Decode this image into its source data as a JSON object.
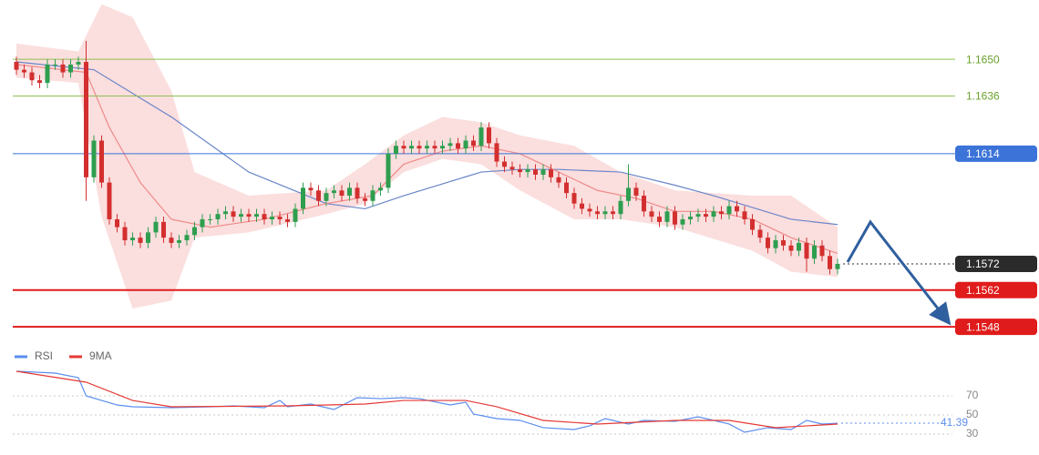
{
  "chart_data": [
    {
      "type": "candlestick",
      "open": [
        1.1649,
        1.1646,
        1.1645,
        1.1642,
        1.1641,
        1.1648,
        1.1648,
        1.1645,
        1.1648,
        1.1649,
        1.1605,
        1.1619,
        1.1603,
        1.1589,
        1.1586,
        1.1581,
        1.1582,
        1.158,
        1.1584,
        1.1588,
        1.1582,
        1.158,
        1.1581,
        1.1583,
        1.1586,
        1.1589,
        1.1589,
        1.1591,
        1.1592,
        1.159,
        1.1591,
        1.159,
        1.1591,
        1.1589,
        1.159,
        1.1589,
        1.1588,
        1.1593,
        1.1601,
        1.16,
        1.1596,
        1.1599,
        1.16,
        1.1598,
        1.1601,
        1.1597,
        1.1596,
        1.16,
        1.1601,
        1.1614,
        1.1617,
        1.1616,
        1.1617,
        1.1616,
        1.1617,
        1.1616,
        1.1617,
        1.1618,
        1.1616,
        1.1619,
        1.1617,
        1.1624,
        1.1618,
        1.1611,
        1.1609,
        1.1608,
        1.1607,
        1.1608,
        1.1606,
        1.1608,
        1.1605,
        1.1603,
        1.1599,
        1.1595,
        1.1593,
        1.1592,
        1.1591,
        1.1592,
        1.1591,
        1.1596,
        1.1601,
        1.1598,
        1.1592,
        1.159,
        1.1588,
        1.1592,
        1.1587,
        1.1589,
        1.159,
        1.1591,
        1.159,
        1.1592,
        1.1591,
        1.1594,
        1.1592,
        1.1589,
        1.1585,
        1.1582,
        1.1578,
        1.1581,
        1.1579,
        1.1577,
        1.158,
        1.1574,
        1.1579,
        1.1575,
        1.157
      ],
      "high": [
        1.1651,
        1.1648,
        1.1647,
        1.1644,
        1.165,
        1.165,
        1.165,
        1.165,
        1.1651,
        1.1657,
        1.1621,
        1.1621,
        1.1605,
        1.1591,
        1.1588,
        1.1584,
        1.1584,
        1.1586,
        1.159,
        1.159,
        1.1584,
        1.1583,
        1.1585,
        1.1588,
        1.1591,
        1.1591,
        1.1593,
        1.1594,
        1.1594,
        1.1593,
        1.1593,
        1.1593,
        1.1593,
        1.1592,
        1.1592,
        1.1591,
        1.1595,
        1.1603,
        1.1603,
        1.1602,
        1.1601,
        1.1602,
        1.1602,
        1.1603,
        1.1603,
        1.1599,
        1.1602,
        1.1603,
        1.1616,
        1.1619,
        1.1619,
        1.1619,
        1.1619,
        1.1619,
        1.1619,
        1.1619,
        1.162,
        1.162,
        1.1621,
        1.1621,
        1.1626,
        1.1626,
        1.162,
        1.1613,
        1.1611,
        1.161,
        1.161,
        1.161,
        1.161,
        1.161,
        1.1607,
        1.1605,
        1.1601,
        1.1597,
        1.1595,
        1.1594,
        1.1594,
        1.1594,
        1.1598,
        1.161,
        1.1603,
        1.16,
        1.1594,
        1.1592,
        1.1594,
        1.1594,
        1.1591,
        1.1592,
        1.1593,
        1.1593,
        1.1594,
        1.1594,
        1.1596,
        1.1596,
        1.1594,
        1.1591,
        1.1587,
        1.1584,
        1.1583,
        1.1583,
        1.1581,
        1.1582,
        1.1582,
        1.1581,
        1.1581,
        1.1577,
        1.1574
      ],
      "low": [
        1.1644,
        1.1643,
        1.164,
        1.1639,
        1.1639,
        1.1646,
        1.1643,
        1.1643,
        1.1646,
        1.1596,
        1.1603,
        1.1601,
        1.1587,
        1.1584,
        1.1579,
        1.1579,
        1.1578,
        1.1578,
        1.1582,
        1.158,
        1.1578,
        1.1578,
        1.1579,
        1.1581,
        1.1584,
        1.1587,
        1.1587,
        1.1589,
        1.1588,
        1.1588,
        1.1588,
        1.1588,
        1.1587,
        1.1587,
        1.1587,
        1.1586,
        1.1586,
        1.1591,
        1.1598,
        1.1594,
        1.1594,
        1.1597,
        1.1596,
        1.1596,
        1.1595,
        1.1594,
        1.1594,
        1.1598,
        1.1599,
        1.1612,
        1.1614,
        1.1614,
        1.1614,
        1.1614,
        1.1614,
        1.1614,
        1.1615,
        1.1614,
        1.1614,
        1.1615,
        1.1615,
        1.1616,
        1.1609,
        1.1607,
        1.1606,
        1.1605,
        1.1605,
        1.1604,
        1.1604,
        1.1603,
        1.1601,
        1.1597,
        1.1593,
        1.1591,
        1.159,
        1.1589,
        1.1589,
        1.1589,
        1.1589,
        1.1594,
        1.1596,
        1.159,
        1.1588,
        1.1586,
        1.1586,
        1.1585,
        1.1585,
        1.1587,
        1.1588,
        1.1588,
        1.1588,
        1.1589,
        1.1589,
        1.159,
        1.1587,
        1.1583,
        1.158,
        1.1576,
        1.1576,
        1.1577,
        1.1575,
        1.1575,
        1.1569,
        1.1572,
        1.1573,
        1.1568,
        1.1568
      ],
      "close": [
        1.1646,
        1.1645,
        1.1642,
        1.1641,
        1.1648,
        1.1648,
        1.1645,
        1.1648,
        1.1649,
        1.1605,
        1.1619,
        1.1603,
        1.1589,
        1.1586,
        1.1581,
        1.1582,
        1.158,
        1.1584,
        1.1588,
        1.1582,
        1.158,
        1.1581,
        1.1583,
        1.1586,
        1.1589,
        1.1589,
        1.1591,
        1.1592,
        1.159,
        1.1591,
        1.159,
        1.1591,
        1.1589,
        1.159,
        1.1589,
        1.1588,
        1.1593,
        1.1601,
        1.16,
        1.1596,
        1.1599,
        1.16,
        1.1598,
        1.1601,
        1.1597,
        1.1596,
        1.16,
        1.1601,
        1.1614,
        1.1617,
        1.1616,
        1.1617,
        1.1616,
        1.1617,
        1.1616,
        1.1617,
        1.1618,
        1.1616,
        1.1619,
        1.1617,
        1.1624,
        1.1618,
        1.1611,
        1.1609,
        1.1608,
        1.1607,
        1.1608,
        1.1606,
        1.1608,
        1.1605,
        1.1603,
        1.1599,
        1.1595,
        1.1593,
        1.1592,
        1.1591,
        1.1592,
        1.1591,
        1.1596,
        1.1601,
        1.1598,
        1.1592,
        1.159,
        1.1588,
        1.1592,
        1.1587,
        1.1589,
        1.159,
        1.1591,
        1.159,
        1.1592,
        1.1591,
        1.1594,
        1.1592,
        1.1589,
        1.1585,
        1.1582,
        1.1578,
        1.1581,
        1.1579,
        1.1577,
        1.158,
        1.1574,
        1.1579,
        1.1575,
        1.157,
        1.1572
      ],
      "up_color": "#2e9e4f",
      "down_color": "#d32f2f",
      "ylim": [
        1.15425,
        1.16726
      ],
      "overlays": [
        {
          "kind": "band",
          "color": "#f9d3d3",
          "x": [
            0,
            8,
            11,
            15,
            20,
            23,
            30,
            40,
            45,
            50,
            55,
            60,
            65,
            72,
            78,
            85,
            95,
            100,
            106
          ],
          "upper": [
            1.1656,
            1.1653,
            1.1671,
            1.1666,
            1.1638,
            1.1607,
            1.1598,
            1.16,
            1.161,
            1.1621,
            1.1628,
            1.1626,
            1.1621,
            1.1617,
            1.1607,
            1.16,
            1.1598,
            1.1598,
            1.1586
          ],
          "lower": [
            1.1643,
            1.1641,
            1.159,
            1.1555,
            1.1558,
            1.1582,
            1.1584,
            1.1591,
            1.1595,
            1.1607,
            1.1612,
            1.161,
            1.16,
            1.1589,
            1.1589,
            1.1586,
            1.1577,
            1.1569,
            1.1567
          ]
        },
        {
          "kind": "line",
          "color": "#6a86c8",
          "x": [
            0,
            10,
            20,
            30,
            40,
            45,
            50,
            60,
            65,
            70,
            78,
            85,
            90,
            100,
            106
          ],
          "values": [
            1.1649,
            1.1646,
            1.1628,
            1.1607,
            1.1595,
            1.1593,
            1.1598,
            1.1607,
            1.1608,
            1.1608,
            1.1607,
            1.1602,
            1.1598,
            1.1589,
            1.1587
          ]
        },
        {
          "kind": "line",
          "color": "#ef8a8a",
          "x": [
            0,
            9,
            12,
            16,
            20,
            25,
            32,
            40,
            46,
            50,
            55,
            60,
            65,
            70,
            75,
            80,
            85,
            90,
            95,
            100,
            106
          ],
          "values": [
            1.1648,
            1.1645,
            1.1624,
            1.1603,
            1.1589,
            1.1586,
            1.1589,
            1.1595,
            1.1598,
            1.161,
            1.1615,
            1.1617,
            1.1614,
            1.1607,
            1.16,
            1.1597,
            1.1592,
            1.1592,
            1.1589,
            1.1582,
            1.1576
          ]
        }
      ],
      "levels": [
        {
          "value": 1.165,
          "label": "1.1650",
          "color": "#8cc152",
          "kind": "text",
          "line_style": "solid"
        },
        {
          "value": 1.1636,
          "color": "#8cc152",
          "kind": "text",
          "line_style": "solid"
        },
        {
          "value": 1.1614,
          "color": "#3b73d9",
          "kind": "box",
          "line_style": "solid"
        },
        {
          "value": 1.1572,
          "color": "#2b2b2b",
          "kind": "box",
          "line_style": "dotted"
        },
        {
          "value": 1.1562,
          "color": "#e01b1b",
          "kind": "box",
          "line_style": "solid"
        },
        {
          "value": 1.1548,
          "color": "#e01b1b",
          "kind": "box",
          "line_style": "solid"
        }
      ]
    },
    {
      "type": "line",
      "series": [
        {
          "name": "RSI",
          "color": "#5b8def",
          "x": [
            0,
            5,
            8,
            9,
            11,
            13,
            15,
            20,
            25,
            28,
            32,
            34,
            35,
            38,
            41,
            44,
            47,
            50,
            52,
            56,
            58,
            59,
            62,
            65,
            68,
            72,
            74,
            76,
            79,
            81,
            85,
            88,
            92,
            94,
            97,
            100,
            102,
            104,
            106
          ],
          "values": [
            95.7,
            93.8,
            89.0,
            70.0,
            65.2,
            60.5,
            58.6,
            57.6,
            58.6,
            59.5,
            57.6,
            65.2,
            58.6,
            61.4,
            55.7,
            68.1,
            67.1,
            68.1,
            67.1,
            60.5,
            63.3,
            51.0,
            46.2,
            44.3,
            36.7,
            34.8,
            38.6,
            46.2,
            40.5,
            44.3,
            43.3,
            48.1,
            40.5,
            31.9,
            36.7,
            34.8,
            44.3,
            40.5,
            41.39
          ]
        },
        {
          "name": "9MA",
          "color": "#e53935",
          "x": [
            0,
            9,
            15,
            20,
            35,
            45,
            50,
            58,
            62,
            68,
            75,
            85,
            92,
            98,
            106
          ],
          "values": [
            95.7,
            84.3,
            65.2,
            58.6,
            59.5,
            61.4,
            65.2,
            65.2,
            58.6,
            44.3,
            40.5,
            44.3,
            44.3,
            36.7,
            40.5
          ]
        }
      ],
      "ylim": [
        20,
        100
      ],
      "yticks": [
        70,
        50,
        30
      ],
      "grid": true,
      "legend": "top-left"
    }
  ]
}
